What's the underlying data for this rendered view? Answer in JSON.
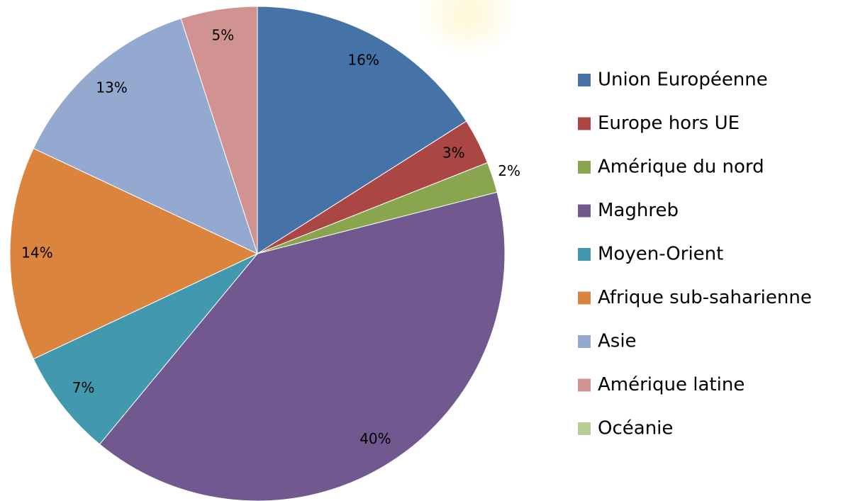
{
  "chart_data": {
    "type": "pie",
    "categories": [
      "Union Européenne",
      "Europe hors UE",
      "Amérique du nord",
      "Maghreb",
      "Moyen-Orient",
      "Afrique sub-saharienne",
      "Asie",
      "Amérique latine",
      "Océanie"
    ],
    "values": [
      16,
      3,
      2,
      40,
      7,
      14,
      13,
      5,
      0
    ],
    "value_labels": [
      "16%",
      "3%",
      "2%",
      "40%",
      "7%",
      "14%",
      "13%",
      "5%",
      null
    ],
    "colors": [
      "#4572a7",
      "#aa4643",
      "#89a54e",
      "#71588f",
      "#4198af",
      "#db843d",
      "#93a9cf",
      "#d19392",
      "#b9cd96"
    ],
    "legend": "right"
  }
}
